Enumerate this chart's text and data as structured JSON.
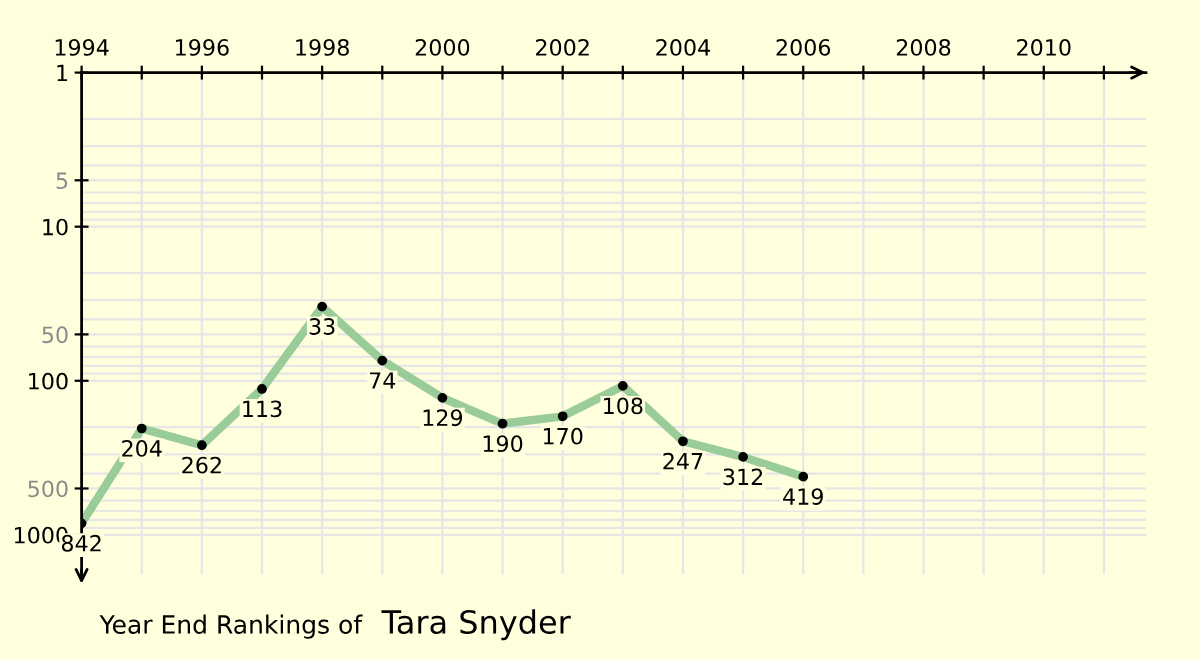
{
  "chart_data": {
    "type": "line",
    "title": "Year End Rankings of",
    "subtitle": "Tara Snyder",
    "x": [
      1994,
      1995,
      1996,
      1997,
      1998,
      1999,
      2000,
      2001,
      2002,
      2003,
      2004,
      2005,
      2006
    ],
    "series": [
      {
        "color": "#99cc99",
        "values": [
          842,
          204,
          262,
          113,
          33,
          74,
          129,
          190,
          170,
          108,
          247,
          312,
          419
        ]
      }
    ],
    "data_labels": true,
    "marker": "circle",
    "log": "y",
    "grid": true,
    "xlim": [
      1994,
      2011.7
    ],
    "ylim": [
      1800,
      1
    ],
    "xticks": [
      1994,
      {
        "value": 1995,
        "label": null
      },
      1996,
      {
        "value": 1997,
        "label": null
      },
      1998,
      {
        "value": 1999,
        "label": null
      },
      2000,
      {
        "value": 2001,
        "label": null
      },
      2002,
      {
        "value": 2003,
        "label": null
      },
      2004,
      {
        "value": 2005,
        "label": null
      },
      2006,
      {
        "value": 2007,
        "label": null
      },
      2008,
      {
        "value": 2009,
        "label": null
      },
      2010,
      {
        "value": 2011,
        "label": null
      }
    ],
    "yticks": [
      1,
      5,
      10,
      50,
      100,
      500,
      1000
    ]
  }
}
